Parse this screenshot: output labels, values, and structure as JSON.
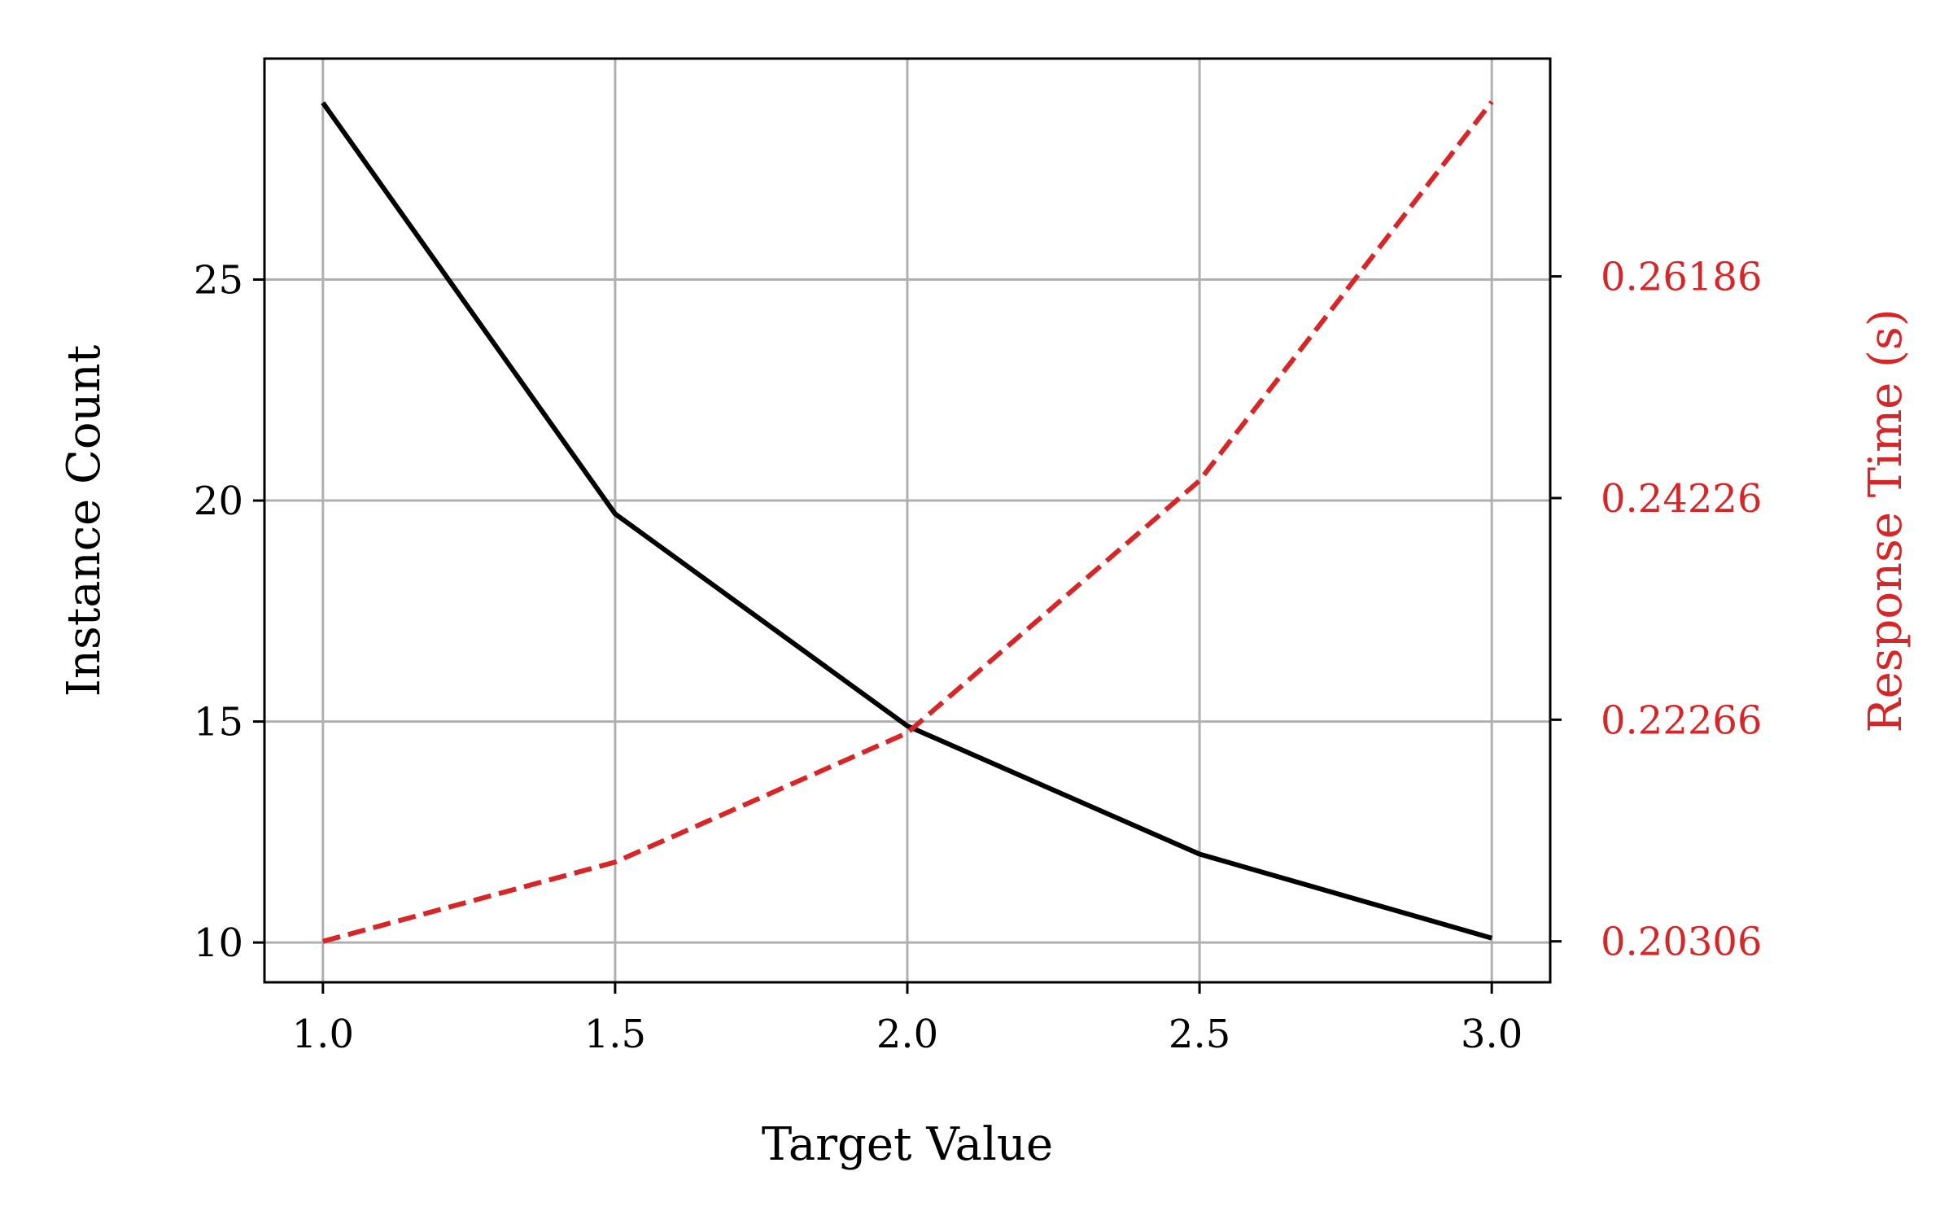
{
  "chart_data": {
    "type": "line",
    "x": [
      1.0,
      1.5,
      2.0,
      2.5,
      3.0
    ],
    "xlabel": "Target Value",
    "xlim": [
      0.9,
      3.1
    ],
    "xticks": [
      1.0,
      1.5,
      2.0,
      2.5,
      3.0
    ],
    "xtick_labels": [
      "1.0",
      "1.5",
      "2.0",
      "2.5",
      "3.0"
    ],
    "ylabel": "Instance Count",
    "ylim": [
      9.1,
      30.0
    ],
    "yticks": [
      10,
      15,
      20,
      25
    ],
    "ytick_labels": [
      "10",
      "15",
      "20",
      "25"
    ],
    "y2label": "Response Time (s)",
    "y2lim": [
      0.19944,
      0.28112
    ],
    "y2ticks": [
      0.20306,
      0.22266,
      0.24226,
      0.26186
    ],
    "y2tick_labels": [
      "0.20306",
      "0.22266",
      "0.24226",
      "0.26186"
    ],
    "grid": true,
    "series": [
      {
        "axis": "left",
        "color": "#000000",
        "linestyle": "solid",
        "values": [
          29.0,
          19.7,
          14.9,
          12.0,
          10.1
        ]
      },
      {
        "axis": "right",
        "color": "#d62728",
        "linestyle": "dashed",
        "values": [
          0.20306,
          0.21007,
          0.2215,
          0.2438,
          0.2773
        ]
      }
    ]
  }
}
